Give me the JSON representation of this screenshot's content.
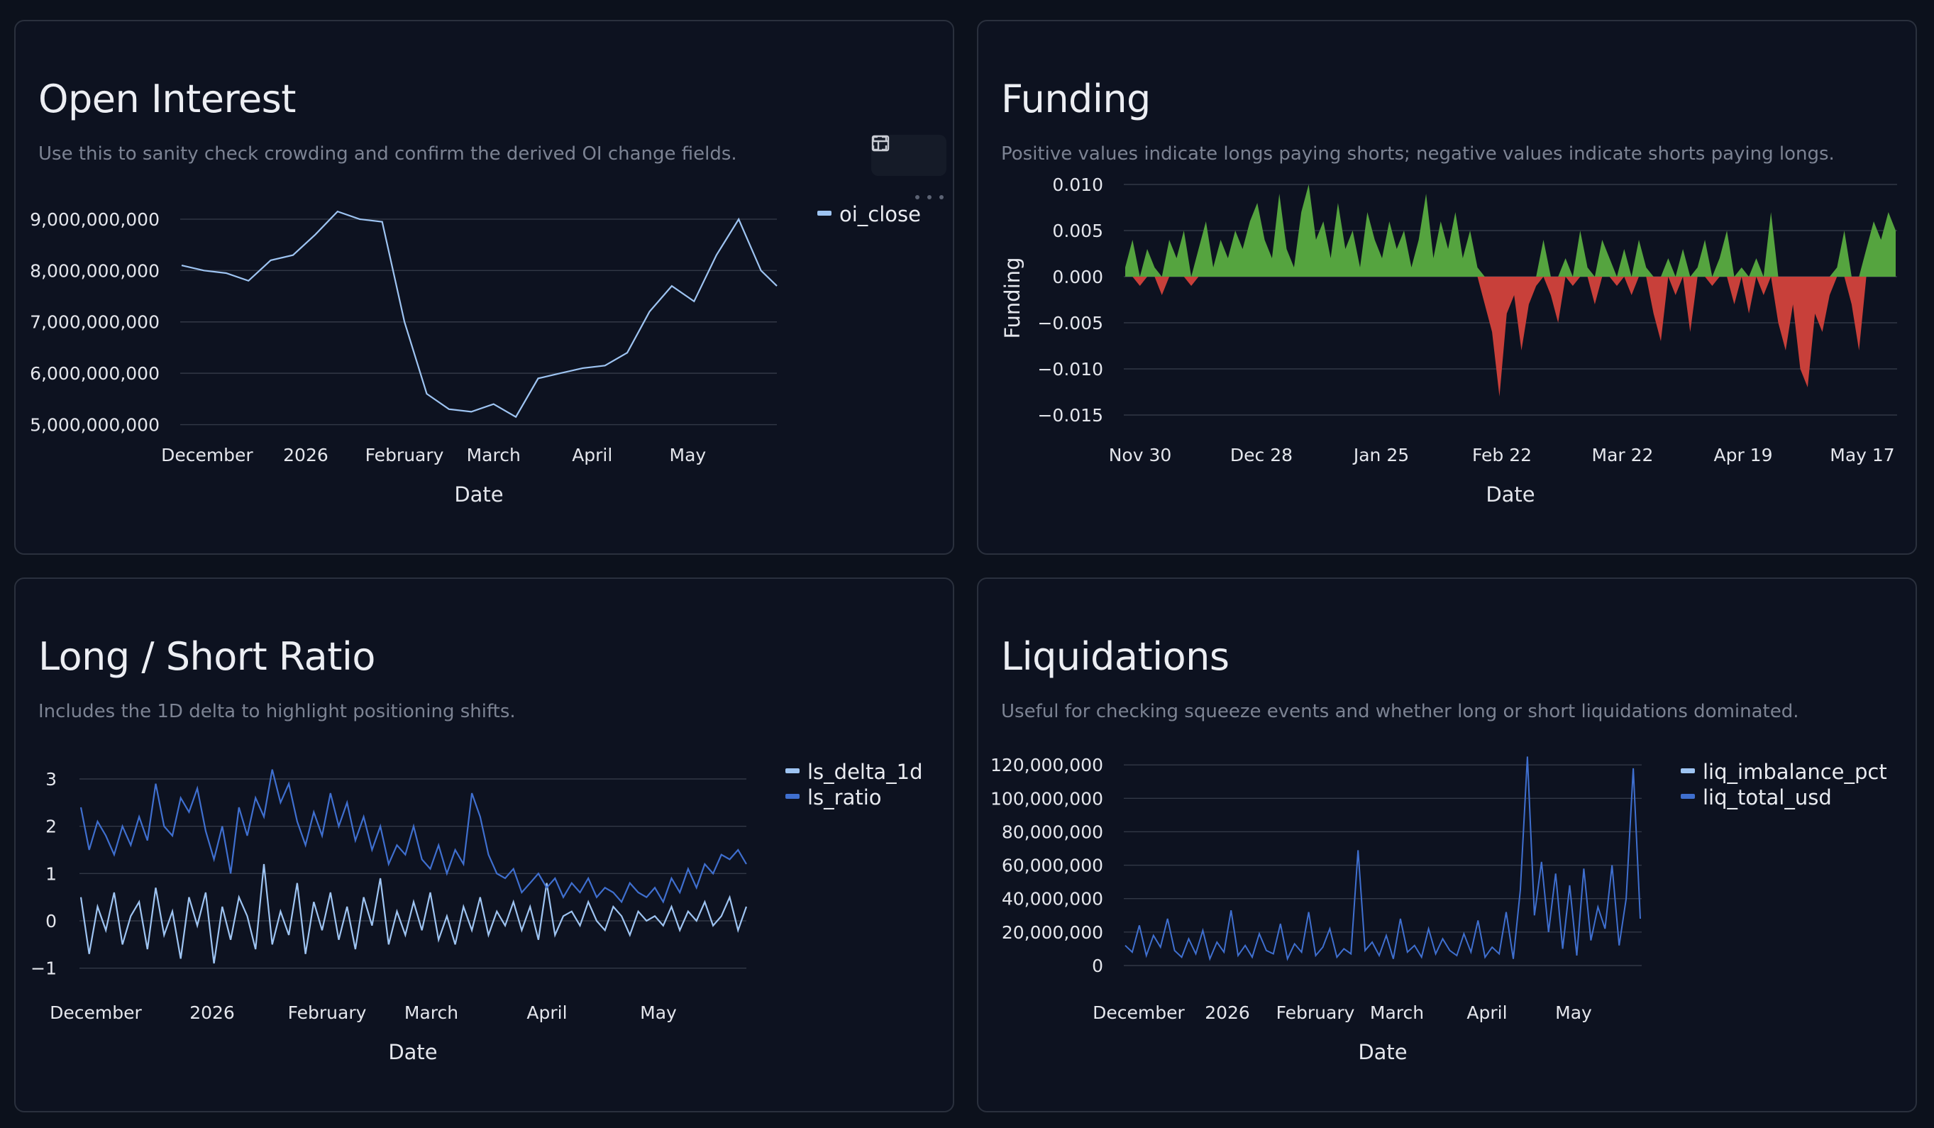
{
  "colors": {
    "background": "#0c111c",
    "card_border": "#2a303d",
    "grid": "#323846",
    "series_light": "#9ec4f2",
    "series_dark": "#3f6fcf",
    "positive": "#55a43f",
    "negative": "#c8403a"
  },
  "icons": [
    "table-icon",
    "fullscreen-icon",
    "more-options-icon"
  ],
  "cards": {
    "open_interest": {
      "title": "Open Interest",
      "description": "Use this to sanity check crowding and confirm the derived OI change fields."
    },
    "funding": {
      "title": "Funding",
      "description": "Positive values indicate longs paying shorts; negative values indicate shorts paying longs."
    },
    "long_short": {
      "title": "Long / Short Ratio",
      "description": "Includes the 1D delta to highlight positioning shifts."
    },
    "liquidations": {
      "title": "Liquidations",
      "description": "Useful for checking squeeze events and whether long or short liquidations dominated."
    }
  },
  "chart_data": [
    {
      "id": "open_interest",
      "type": "line",
      "xlabel": "Date",
      "ylabel": "",
      "x_ticks": [
        "December",
        "2026",
        "February",
        "March",
        "April",
        "May"
      ],
      "y_ticks": [
        "5,000,000,000",
        "6,000,000,000",
        "7,000,000,000",
        "8,000,000,000",
        "9,000,000,000"
      ],
      "ylim": [
        4800000000,
        9400000000
      ],
      "grid": true,
      "legend_position": "right",
      "series": [
        {
          "name": "oi_close",
          "color": "#9ec4f2",
          "x": [
            "2025-11-23",
            "2025-11-30",
            "2025-12-07",
            "2025-12-14",
            "2025-12-21",
            "2025-12-28",
            "2026-01-04",
            "2026-01-11",
            "2026-01-18",
            "2026-01-25",
            "2026-02-01",
            "2026-02-08",
            "2026-02-15",
            "2026-02-22",
            "2026-03-01",
            "2026-03-08",
            "2026-03-15",
            "2026-03-22",
            "2026-03-29",
            "2026-04-05",
            "2026-04-12",
            "2026-04-19",
            "2026-04-26",
            "2026-05-03",
            "2026-05-10",
            "2026-05-17",
            "2026-05-24",
            "2026-05-29"
          ],
          "values": [
            8100000000,
            8000000000,
            7950000000,
            7800000000,
            8200000000,
            8300000000,
            8700000000,
            9150000000,
            9000000000,
            8950000000,
            7000000000,
            5600000000,
            5300000000,
            5250000000,
            5400000000,
            5150000000,
            5900000000,
            6000000000,
            6100000000,
            6150000000,
            6400000000,
            7200000000,
            7700000000,
            7400000000,
            8300000000,
            9000000000,
            8000000000,
            7700000000
          ]
        }
      ]
    },
    {
      "id": "funding",
      "type": "area",
      "xlabel": "Date",
      "ylabel": "Funding",
      "x_ticks": [
        "Nov 30",
        "Dec 28",
        "Jan 25",
        "Feb 22",
        "Mar 22",
        "Apr 19",
        "May 17"
      ],
      "y_ticks": [
        "0.010",
        "0.005",
        "0.000",
        "−0.005",
        "−0.010",
        "−0.015"
      ],
      "ylim": [
        -0.015,
        0.01
      ],
      "grid": true,
      "series": [
        {
          "name": "funding",
          "start": "2025-11-26",
          "end": "2026-05-29",
          "values": [
            0.001,
            0.004,
            -0.001,
            0.003,
            0.001,
            -0.002,
            0.004,
            0.002,
            0.005,
            -0.001,
            0.003,
            0.006,
            0.001,
            0.004,
            0.002,
            0.005,
            0.003,
            0.006,
            0.008,
            0.004,
            0.002,
            0.009,
            0.003,
            0.001,
            0.007,
            0.01,
            0.004,
            0.006,
            0.002,
            0.008,
            0.003,
            0.005,
            0.001,
            0.007,
            0.004,
            0.002,
            0.006,
            0.003,
            0.005,
            0.001,
            0.004,
            0.009,
            0.002,
            0.006,
            0.003,
            0.007,
            0.002,
            0.005,
            0.001,
            -0.003,
            -0.006,
            -0.013,
            -0.004,
            -0.002,
            -0.008,
            -0.003,
            -0.001,
            0.004,
            -0.002,
            -0.005,
            0.002,
            -0.001,
            0.005,
            0.001,
            -0.003,
            0.004,
            0.002,
            -0.001,
            0.003,
            -0.002,
            0.004,
            0.001,
            -0.004,
            -0.007,
            0.002,
            -0.002,
            0.003,
            -0.006,
            0.001,
            0.004,
            -0.001,
            0.002,
            0.005,
            -0.003,
            0.001,
            -0.004,
            0.002,
            -0.002,
            0.007,
            -0.005,
            -0.008,
            -0.003,
            -0.01,
            -0.012,
            -0.004,
            -0.006,
            -0.002,
            0.001,
            0.005,
            -0.003,
            -0.008,
            0.003,
            0.006,
            0.004,
            0.007,
            0.005
          ]
        }
      ]
    },
    {
      "id": "long_short",
      "type": "line",
      "xlabel": "Date",
      "ylabel": "",
      "x_ticks": [
        "December",
        "2026",
        "February",
        "March",
        "April",
        "May"
      ],
      "y_ticks": [
        "3",
        "2",
        "1",
        "0",
        "−1"
      ],
      "ylim": [
        -1.2,
        3.3
      ],
      "grid": true,
      "legend_position": "right",
      "series": [
        {
          "name": "ls_delta_1d",
          "color": "#9ec4f2",
          "values": [
            0.5,
            -0.7,
            0.3,
            -0.2,
            0.6,
            -0.5,
            0.1,
            0.4,
            -0.6,
            0.7,
            -0.3,
            0.2,
            -0.8,
            0.5,
            -0.1,
            0.6,
            -0.9,
            0.3,
            -0.4,
            0.5,
            0.1,
            -0.6,
            1.2,
            -0.5,
            0.2,
            -0.3,
            0.8,
            -0.7,
            0.4,
            -0.2,
            0.6,
            -0.4,
            0.3,
            -0.6,
            0.5,
            -0.1,
            0.9,
            -0.5,
            0.2,
            -0.3,
            0.4,
            -0.2,
            0.6,
            -0.4,
            0.1,
            -0.5,
            0.3,
            -0.2,
            0.5,
            -0.3,
            0.2,
            -0.1,
            0.4,
            -0.2,
            0.3,
            -0.4,
            0.8,
            -0.3,
            0.1,
            0.2,
            -0.1,
            0.4,
            0.0,
            -0.2,
            0.3,
            0.1,
            -0.3,
            0.2,
            0.0,
            0.1,
            -0.1,
            0.3,
            -0.2,
            0.2,
            0.0,
            0.4,
            -0.1,
            0.1,
            0.5,
            -0.2,
            0.3
          ]
        },
        {
          "name": "ls_ratio",
          "color": "#3f6fcf",
          "values": [
            2.4,
            1.5,
            2.1,
            1.8,
            1.4,
            2.0,
            1.6,
            2.2,
            1.7,
            2.9,
            2.0,
            1.8,
            2.6,
            2.3,
            2.8,
            1.9,
            1.3,
            2.0,
            1.0,
            2.4,
            1.8,
            2.6,
            2.2,
            3.2,
            2.5,
            2.9,
            2.1,
            1.6,
            2.3,
            1.8,
            2.7,
            2.0,
            2.5,
            1.7,
            2.2,
            1.5,
            2.0,
            1.2,
            1.6,
            1.4,
            2.0,
            1.3,
            1.1,
            1.6,
            1.0,
            1.5,
            1.2,
            2.7,
            2.2,
            1.4,
            1.0,
            0.9,
            1.1,
            0.6,
            0.8,
            1.0,
            0.7,
            0.9,
            0.5,
            0.8,
            0.6,
            0.9,
            0.5,
            0.7,
            0.6,
            0.4,
            0.8,
            0.6,
            0.5,
            0.7,
            0.4,
            0.9,
            0.6,
            1.1,
            0.7,
            1.2,
            1.0,
            1.4,
            1.3,
            1.5,
            1.2
          ]
        }
      ]
    },
    {
      "id": "liquidations",
      "type": "line",
      "xlabel": "Date",
      "ylabel": "",
      "x_ticks": [
        "December",
        "2026",
        "February",
        "March",
        "April",
        "May"
      ],
      "y_ticks": [
        "0",
        "20,000,000",
        "40,000,000",
        "60,000,000",
        "80,000,000",
        "100,000,000",
        "120,000,000"
      ],
      "ylim": [
        0,
        126000000
      ],
      "grid": true,
      "legend_position": "right",
      "series": [
        {
          "name": "liq_imbalance_pct",
          "color": "#9ec4f2",
          "values": []
        },
        {
          "name": "liq_total_usd",
          "color": "#3f6fcf",
          "values": [
            12000000,
            8000000,
            24000000,
            6000000,
            18000000,
            11000000,
            28000000,
            9000000,
            5000000,
            16000000,
            7000000,
            21000000,
            4000000,
            14000000,
            8000000,
            33000000,
            6000000,
            12000000,
            5000000,
            19000000,
            9000000,
            7000000,
            25000000,
            4000000,
            13000000,
            8000000,
            32000000,
            6000000,
            11000000,
            22000000,
            5000000,
            10000000,
            7000000,
            69000000,
            9000000,
            14000000,
            6000000,
            18000000,
            4000000,
            28000000,
            8000000,
            12000000,
            5000000,
            22000000,
            7000000,
            16000000,
            9000000,
            6000000,
            19000000,
            8000000,
            27000000,
            5000000,
            11000000,
            7000000,
            32000000,
            4000000,
            45000000,
            125000000,
            30000000,
            62000000,
            20000000,
            55000000,
            10000000,
            48000000,
            6000000,
            58000000,
            15000000,
            35000000,
            22000000,
            60000000,
            12000000,
            40000000,
            118000000,
            28000000
          ]
        }
      ]
    }
  ]
}
